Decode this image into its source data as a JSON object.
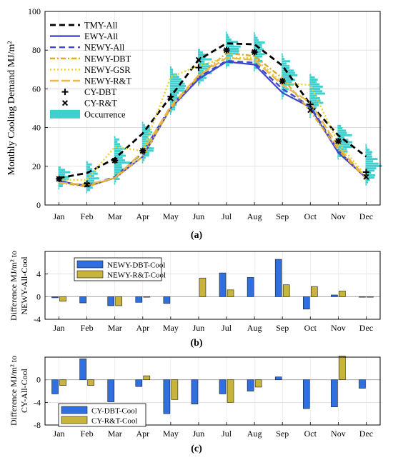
{
  "chart_data": [
    {
      "type": "line",
      "panel_label": "(a)",
      "categories": [
        "Jan",
        "Feb",
        "Mar",
        "Apr",
        "May",
        "Jun",
        "Jul",
        "Aug",
        "Sep",
        "Oct",
        "Nov",
        "Dec"
      ],
      "ylabel": "Monthly Cooling Demand MJ/m²",
      "ylim": [
        0,
        100
      ],
      "yticks": [
        0,
        20,
        40,
        60,
        80,
        100
      ],
      "grid": true,
      "legend_position": "top-left",
      "series": [
        {
          "name": "TMY-All",
          "color": "#000000",
          "style": "dashed",
          "values": [
            14,
            16.5,
            24,
            37,
            56,
            75,
            83.5,
            83,
            72,
            52,
            36,
            25
          ]
        },
        {
          "name": "EWY-All",
          "color": "#3f48cc",
          "style": "solid",
          "values": [
            12.5,
            9.5,
            14,
            25,
            50,
            65,
            74,
            72.5,
            58,
            50.5,
            27,
            14
          ]
        },
        {
          "name": "NEWY-All",
          "color": "#3f48cc",
          "style": "dashed",
          "values": [
            12,
            10,
            14.5,
            27,
            51,
            66,
            74.5,
            73.5,
            60,
            51,
            28,
            14
          ]
        },
        {
          "name": "NEWY-DBT",
          "color": "#e0a82e",
          "style": "dashdot",
          "values": [
            11.5,
            9.5,
            14,
            25,
            50,
            66.5,
            78.5,
            77,
            65.5,
            48.5,
            28.5,
            13.5
          ]
        },
        {
          "name": "NEWY-GSR",
          "color": "#f0d020",
          "style": "dotted",
          "values": [
            13,
            13,
            30,
            28,
            66,
            72,
            76,
            76,
            63,
            62,
            32,
            15
          ]
        },
        {
          "name": "NEWY-R&T",
          "color": "#e8b84a",
          "style": "longdash",
          "values": [
            11.5,
            10.5,
            14,
            27.5,
            51,
            67,
            76,
            75,
            62,
            53,
            30,
            14
          ]
        }
      ],
      "markers": [
        {
          "name": "CY-DBT",
          "symbol": "+",
          "values": [
            13.5,
            11,
            23,
            28,
            56,
            71,
            80,
            79,
            64,
            52,
            33,
            17
          ]
        },
        {
          "name": "CY-R&T",
          "symbol": "x",
          "values": [
            13.5,
            10.5,
            23,
            28,
            55,
            75,
            80,
            79,
            64,
            49,
            33,
            14.5
          ]
        }
      ],
      "occurrence": {
        "name": "Occurrence",
        "color": "#3fcfcf"
      }
    },
    {
      "type": "bar",
      "panel_label": "(b)",
      "categories": [
        "Jan",
        "Feb",
        "Mar",
        "Apr",
        "May",
        "Jun",
        "Jul",
        "Aug",
        "Sep",
        "Oct",
        "Nov",
        "Dec"
      ],
      "ylabel": "Difference MJ/m² to NEWY-All-Cool",
      "ylim": [
        -4,
        8
      ],
      "yticks": [
        -4,
        0,
        4
      ],
      "grid": true,
      "legend_position": "top-left",
      "series": [
        {
          "name": "NEWY-DBT-Cool",
          "color": "#2f6fe0",
          "values": [
            -0.2,
            -1.1,
            -1.6,
            -1.0,
            -1.2,
            0,
            4.2,
            3.4,
            6.6,
            -2.2,
            0.3,
            -0.1
          ]
        },
        {
          "name": "NEWY-R&T-Cool",
          "color": "#c8b43a",
          "values": [
            -0.8,
            0,
            -1.6,
            -0.1,
            0,
            3.3,
            1.2,
            0,
            2.1,
            1.8,
            1.0,
            -0.1
          ]
        }
      ]
    },
    {
      "type": "bar",
      "panel_label": "(c)",
      "categories": [
        "Jan",
        "Feb",
        "Mar",
        "Apr",
        "May",
        "Jun",
        "Jul",
        "Aug",
        "Sep",
        "Oct",
        "Nov",
        "Dec"
      ],
      "ylabel": "Difference MJ/m² to CY-All-Cool",
      "ylim": [
        -8,
        4
      ],
      "yticks": [
        -8,
        -4,
        0
      ],
      "grid": true,
      "legend_position": "bottom-left",
      "series": [
        {
          "name": "CY-DBT-Cool",
          "color": "#2f6fe0",
          "values": [
            -2.5,
            3.7,
            -3.9,
            -1.2,
            -6.0,
            -4.3,
            -2.5,
            -2.0,
            0.5,
            -5.1,
            -4.8,
            -1.5
          ]
        },
        {
          "name": "CY-R&T-Cool",
          "color": "#c8b43a",
          "values": [
            -1.0,
            -1.0,
            0,
            0.7,
            -3.5,
            0,
            -4.0,
            -1.3,
            0,
            0,
            4.2,
            0
          ]
        }
      ]
    }
  ]
}
